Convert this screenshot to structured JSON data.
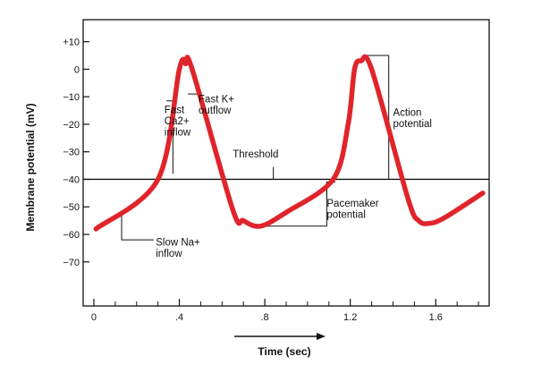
{
  "chart_data": {
    "type": "line",
    "title": "",
    "xlabel": "Time (sec)",
    "ylabel": "Membrane potential (mV)",
    "xlim": [
      -0.05,
      1.85
    ],
    "ylim": [
      -86,
      18
    ],
    "x_ticks": [
      0,
      0.4,
      0.8,
      1.2,
      1.6
    ],
    "x_tick_labels": [
      "0",
      ".4",
      ".8",
      "1.2",
      "1.6"
    ],
    "y_ticks": [
      10,
      0,
      -10,
      -20,
      -30,
      -40,
      -50,
      -60,
      -70
    ],
    "y_tick_labels": [
      "+10",
      "0",
      "−10",
      "−20",
      "−30",
      "−40",
      "−50",
      "−60",
      "−70"
    ],
    "series": [
      {
        "color": "#e0242b",
        "x": [
          0.01,
          0.3,
          0.4,
          0.43,
          0.46,
          0.65,
          0.7,
          0.78,
          0.9,
          1.12,
          1.19,
          1.22,
          1.25,
          1.3,
          1.47,
          1.52,
          1.57,
          1.64,
          1.82
        ],
        "y": [
          -58,
          -40,
          0,
          2,
          0,
          -51,
          -55,
          -57,
          -52,
          -40,
          -20,
          0,
          3,
          0,
          -47,
          -55,
          -56,
          -54,
          -45
        ]
      }
    ],
    "threshold_value": -40,
    "annotations": [
      {
        "text": "Fast\nCa2+\ninflow",
        "x": 0.33,
        "y": -16
      },
      {
        "text": "Fast K+\noutflow",
        "x": 0.49,
        "y": -12
      },
      {
        "text": "Threshold",
        "x": 0.65,
        "y": -32
      },
      {
        "text": "Slow Na+\ninflow",
        "x": 0.29,
        "y": -64
      },
      {
        "text": "Pacemaker\npotential",
        "x": 1.09,
        "y": -50
      },
      {
        "text": "Action\npotential",
        "x": 1.4,
        "y": -17
      }
    ]
  }
}
